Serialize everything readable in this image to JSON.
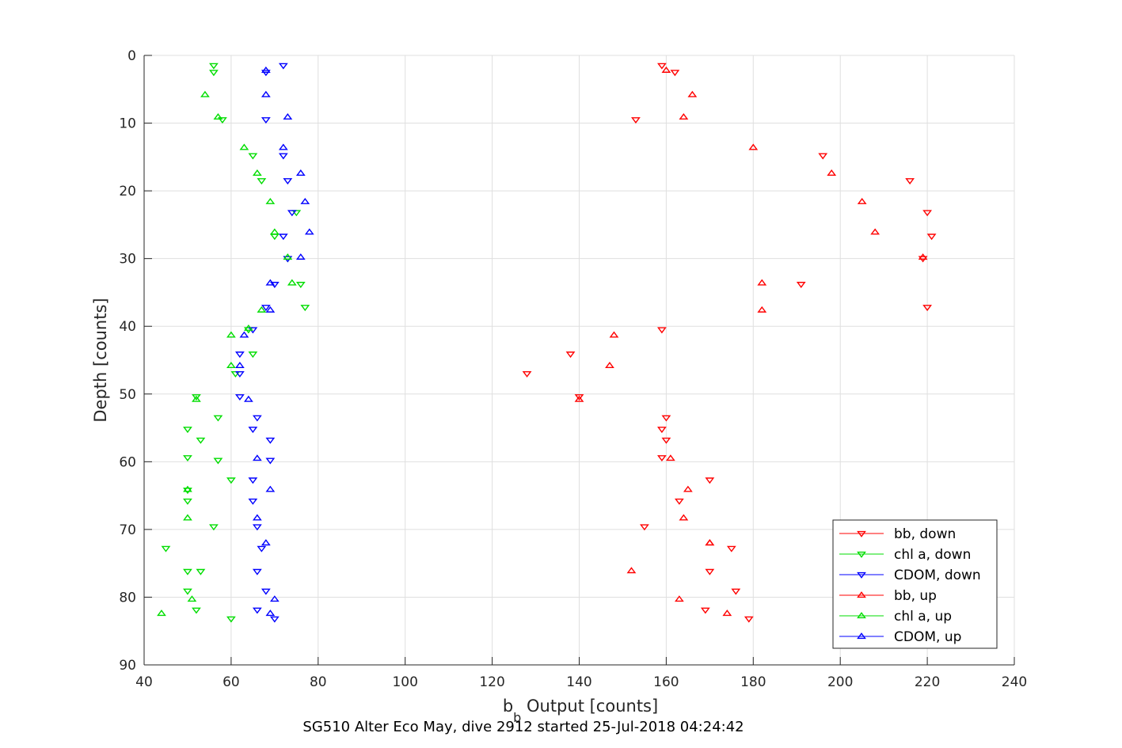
{
  "chart_data": {
    "type": "scatter",
    "title": "",
    "caption": "SG510 Alter Eco May, dive 2912 started 25-Jul-2018 04:24:42",
    "xlabel_main": "b",
    "xlabel_sub": "b",
    "xlabel_rest": " Output [counts]",
    "ylabel": "Depth [counts]",
    "xlim": [
      40,
      240
    ],
    "ylim": [
      0,
      90
    ],
    "y_reversed": true,
    "grid": true,
    "legend_position": "bottom-right",
    "xticks": [
      40,
      60,
      80,
      100,
      120,
      140,
      160,
      180,
      200,
      220,
      240
    ],
    "yticks": [
      0,
      10,
      20,
      30,
      40,
      50,
      60,
      70,
      80,
      90
    ],
    "series": [
      {
        "name": "bb, down",
        "color": "#ff0000",
        "marker": "triangle-down",
        "x": [
          159,
          162,
          153,
          196,
          216,
          220,
          221,
          219,
          191,
          220,
          159,
          138,
          128,
          140,
          160,
          159,
          160,
          159,
          170,
          163,
          155,
          175,
          170,
          176,
          169,
          179
        ],
        "y": [
          1.5,
          2.5,
          9.5,
          14.8,
          18.5,
          23.2,
          26.7,
          30,
          33.8,
          37.2,
          40.5,
          44.1,
          47,
          50.4,
          53.5,
          55.2,
          56.8,
          59.4,
          62.7,
          65.8,
          69.6,
          72.8,
          76.2,
          79.1,
          81.9,
          83.2
        ]
      },
      {
        "name": "chl a, down",
        "color": "#00dd00",
        "marker": "triangle-down",
        "x": [
          56,
          56,
          58,
          65,
          67,
          75,
          70,
          73,
          76,
          77,
          64,
          65,
          61,
          52,
          57,
          50,
          53,
          50,
          57,
          60,
          50,
          50,
          56,
          45,
          50,
          53,
          50,
          52,
          60
        ],
        "y": [
          1.5,
          2.5,
          9.5,
          14.8,
          18.5,
          23.2,
          26.7,
          30,
          33.8,
          37.2,
          40.5,
          44.1,
          47,
          50.4,
          53.5,
          55.2,
          56.8,
          59.4,
          59.8,
          62.7,
          64.2,
          65.8,
          69.6,
          72.8,
          76.2,
          76.2,
          79.1,
          81.9,
          83.2
        ]
      },
      {
        "name": "CDOM, down",
        "color": "#0000ff",
        "marker": "triangle-down",
        "x": [
          72,
          68,
          68,
          72,
          73,
          74,
          72,
          73,
          70,
          68,
          65,
          62,
          62,
          62,
          66,
          65,
          69,
          69,
          65,
          65,
          66,
          67,
          66,
          68,
          66,
          70
        ],
        "y": [
          1.5,
          2.5,
          9.5,
          14.8,
          18.5,
          23.2,
          26.7,
          30,
          33.8,
          37.2,
          40.5,
          44.1,
          47,
          50.4,
          53.5,
          55.2,
          56.8,
          59.8,
          62.7,
          65.8,
          69.6,
          72.8,
          76.2,
          79.1,
          81.9,
          83.2
        ]
      },
      {
        "name": "bb, up",
        "color": "#ff0000",
        "marker": "triangle-up",
        "x": [
          160,
          166,
          164,
          180,
          198,
          205,
          208,
          219,
          182,
          182,
          148,
          147,
          140,
          161,
          170,
          165,
          164,
          170,
          152,
          163,
          174
        ],
        "y": [
          2.2,
          5.8,
          9.1,
          13.6,
          17.4,
          21.6,
          26.1,
          29.8,
          33.6,
          37.6,
          41.3,
          45.8,
          50.8,
          59.5,
          72,
          64.1,
          68.3,
          72,
          76.1,
          80.3,
          82.4
        ]
      },
      {
        "name": "chl a, up",
        "color": "#00dd00",
        "marker": "triangle-up",
        "x": [
          54,
          57,
          63,
          66,
          69,
          70,
          74,
          67,
          60,
          60,
          52,
          51,
          44,
          64,
          50,
          50,
          73
        ],
        "y": [
          5.8,
          9.1,
          13.6,
          17.4,
          21.6,
          26.1,
          33.6,
          37.6,
          41.3,
          45.8,
          50.8,
          80.3,
          82.4,
          40.3,
          68.3,
          64.1,
          29.8
        ]
      },
      {
        "name": "CDOM, up",
        "color": "#0000ff",
        "marker": "triangle-up",
        "x": [
          68,
          68,
          73,
          72,
          76,
          77,
          78,
          76,
          69,
          69,
          63,
          62,
          64,
          66,
          69,
          66,
          68,
          70,
          69
        ],
        "y": [
          2.2,
          5.8,
          9.1,
          13.6,
          17.4,
          21.6,
          26.1,
          29.8,
          33.6,
          37.6,
          41.3,
          45.8,
          50.8,
          59.5,
          64.1,
          68.3,
          72,
          80.3,
          82.4
        ]
      }
    ]
  }
}
